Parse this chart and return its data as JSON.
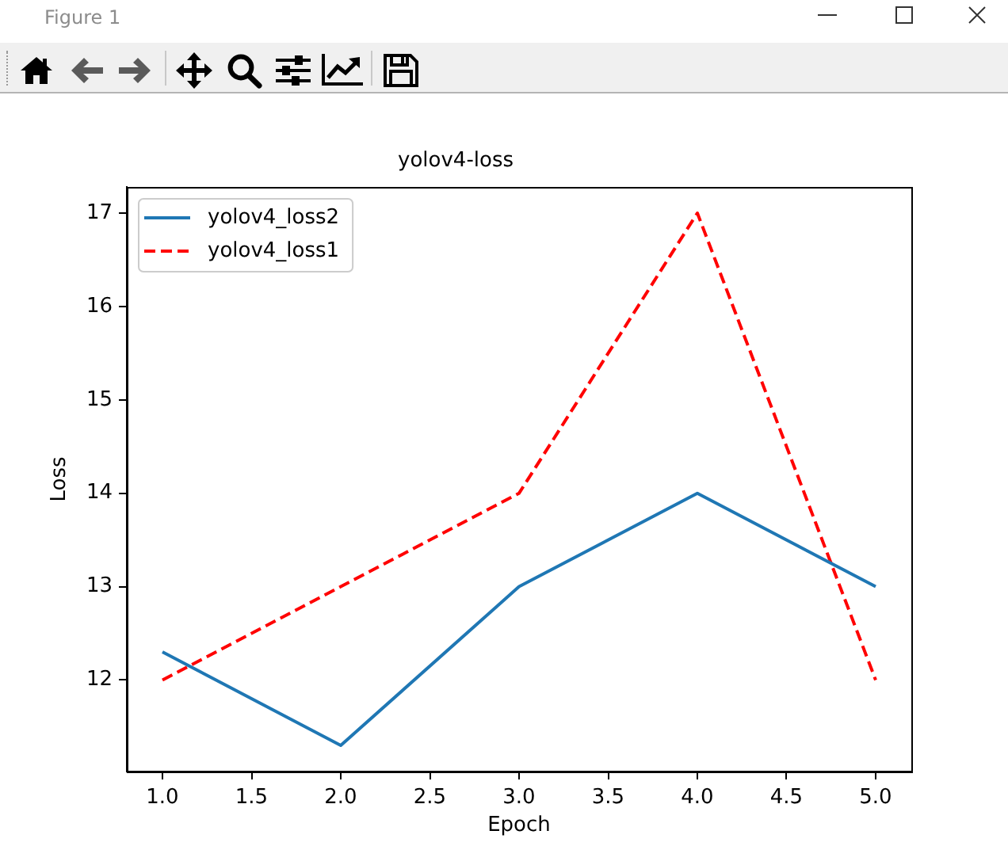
{
  "chart_data": {
    "type": "line",
    "title": "yolov4-loss",
    "xlabel": "Epoch",
    "ylabel": "Loss",
    "x": [
      1,
      2,
      3,
      4,
      5
    ],
    "series": [
      {
        "name": "yolov4_loss2",
        "color": "#1f77b4",
        "values": [
          12.3,
          11.3,
          13,
          14,
          13
        ],
        "line_style": "solid"
      },
      {
        "name": "yolov4_loss1",
        "color": "#ff0000",
        "values": [
          12,
          13,
          14,
          17,
          12
        ],
        "line_style": "dashed"
      }
    ],
    "xlim": [
      0.8,
      5.2
    ],
    "ylim": [
      11.02,
      17.28
    ],
    "xticks": [
      {
        "value": 1,
        "label": "1.0"
      },
      {
        "value": 1.5,
        "label": "1.5"
      },
      {
        "value": 2,
        "label": "2.0"
      },
      {
        "value": 2.5,
        "label": "2.5"
      },
      {
        "value": 3,
        "label": "3.0"
      },
      {
        "value": 3.5,
        "label": "3.5"
      },
      {
        "value": 4,
        "label": "4.0"
      },
      {
        "value": 4.5,
        "label": "4.5"
      },
      {
        "value": 5,
        "label": "5.0"
      }
    ],
    "yticks": [
      12,
      13,
      14,
      15,
      16,
      17
    ],
    "legend": "top left",
    "annotations": [
      "Figure 1"
    ]
  }
}
